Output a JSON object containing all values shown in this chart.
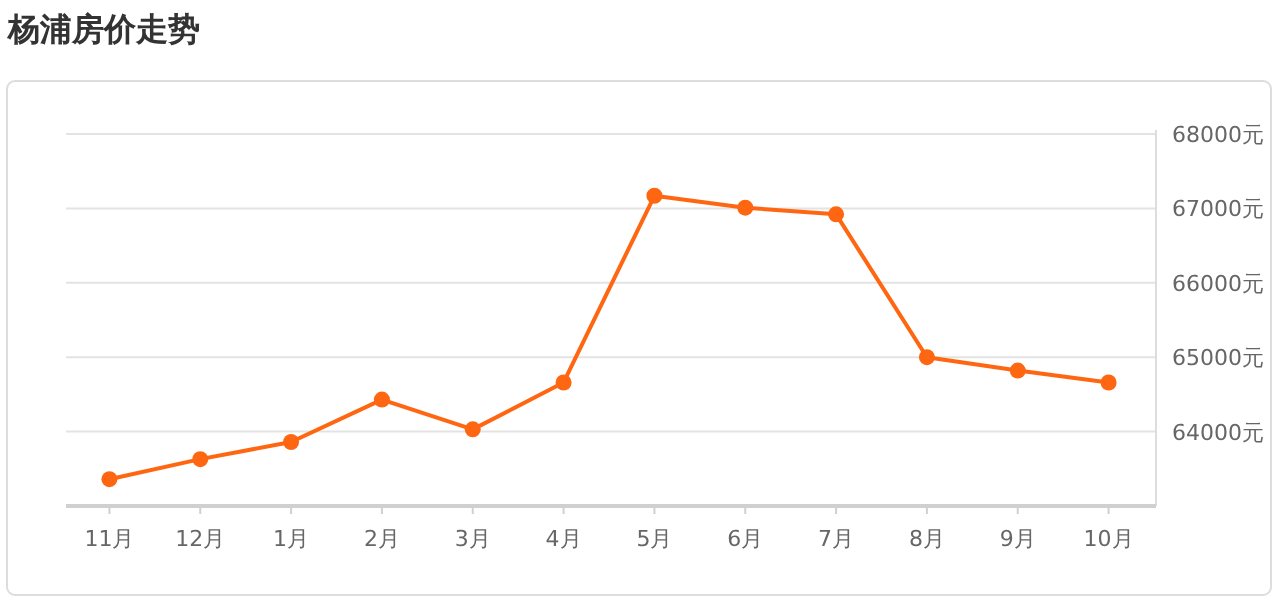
{
  "chart_data": {
    "type": "line",
    "title": "杨浦房价走势",
    "categories": [
      "11月",
      "12月",
      "1月",
      "2月",
      "3月",
      "4月",
      "5月",
      "6月",
      "7月",
      "8月",
      "9月",
      "10月"
    ],
    "series": [
      {
        "color": "#ff6611",
        "values": [
          63360,
          63630,
          63860,
          64430,
          64030,
          64660,
          67170,
          67010,
          66920,
          65000,
          64820,
          64660
        ]
      }
    ],
    "ylim": [
      63000,
      68000
    ],
    "yticks": [
      {
        "value": 64000,
        "label": "64000元"
      },
      {
        "value": 65000,
        "label": "65000元"
      },
      {
        "value": 66000,
        "label": "66000元"
      },
      {
        "value": 67000,
        "label": "67000元"
      },
      {
        "value": 68000,
        "label": "68000元"
      }
    ],
    "grid": "y",
    "marker": "circle",
    "line_style": "solid"
  }
}
